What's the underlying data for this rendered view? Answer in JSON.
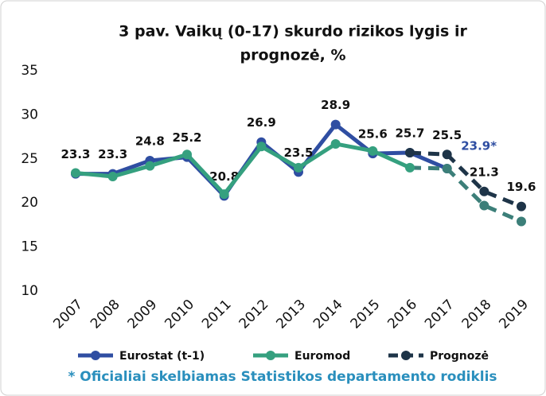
{
  "chart_data": {
    "type": "line",
    "title": "3 pav. Vaikų (0-17) skurdo rizikos lygis ir",
    "title_line2": "prognozė, %",
    "categories": [
      "2007",
      "2008",
      "2009",
      "2010",
      "2011",
      "2012",
      "2013",
      "2014",
      "2015",
      "2016",
      "2017",
      "2018",
      "2019"
    ],
    "series": [
      {
        "name": "Eurostat (t-1)",
        "color": "#2f4ea2",
        "style": "solid",
        "values": [
          23.3,
          23.3,
          24.8,
          25.2,
          20.8,
          26.9,
          23.5,
          28.9,
          25.6,
          25.7,
          23.9,
          null,
          null
        ],
        "value_labels": [
          "23.3",
          "23.3",
          "24.8",
          "25.2",
          "20.8",
          "26.9",
          "23.5",
          "28.9",
          "25.6",
          null,
          "23.9*",
          null,
          null
        ]
      },
      {
        "name": "Euromod",
        "color": "#35a07f",
        "style": "solid",
        "dashed_from": "2016",
        "dash_color": "#3c7f79",
        "values": [
          23.4,
          23.0,
          24.2,
          25.5,
          21.0,
          26.4,
          24.0,
          26.7,
          25.9,
          24.0,
          23.9,
          19.7,
          17.9
        ]
      },
      {
        "name": "Prognozė",
        "color": "#1e3448",
        "style": "dashed",
        "values": [
          null,
          null,
          null,
          null,
          null,
          null,
          null,
          null,
          null,
          25.7,
          25.5,
          21.3,
          19.6
        ],
        "value_labels": [
          null,
          null,
          null,
          null,
          null,
          null,
          null,
          null,
          null,
          "25.7",
          "25.5",
          "21.3",
          "19.6"
        ]
      }
    ],
    "ylim": [
      10,
      35
    ],
    "yticks": [
      10,
      15,
      20,
      25,
      30,
      35
    ],
    "grid": false,
    "footnote": "* Oficialiai skelbiamas Statistikos departamento rodiklis"
  }
}
